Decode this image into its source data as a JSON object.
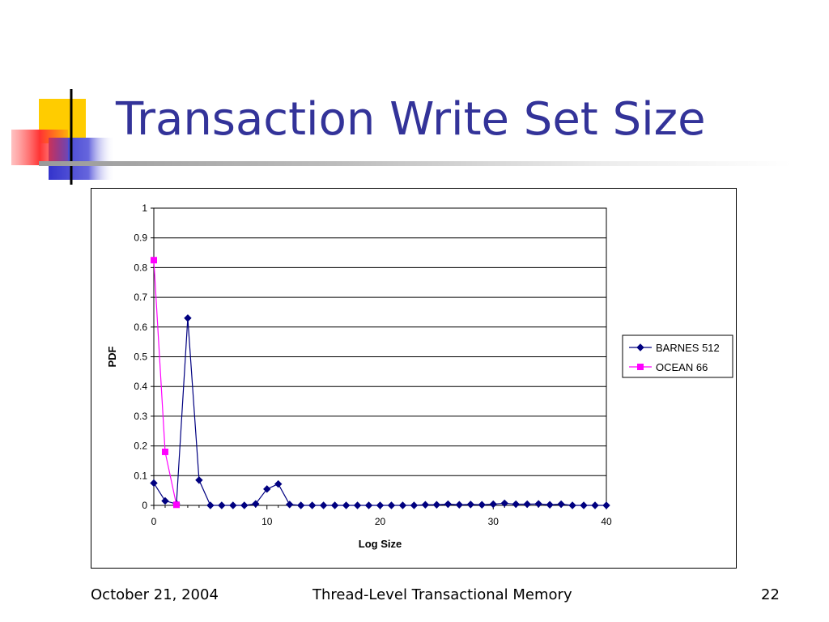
{
  "slide": {
    "title": "Transaction Write Set Size",
    "footer": {
      "date": "October 21, 2004",
      "center": "Thread-Level Transactional Memory",
      "page": "22"
    }
  },
  "colors": {
    "title": "#333399",
    "barnes": "#000080",
    "ocean": "#ff00ff",
    "logo_yellow": "#ffcc00",
    "logo_blue": "#3333cc",
    "logo_red": "#ff3333"
  },
  "chart_data": {
    "type": "line",
    "xlabel": "Log Size",
    "ylabel": "PDF",
    "xlim": [
      0,
      40
    ],
    "ylim": [
      0,
      1
    ],
    "xticks": [
      0,
      10,
      20,
      30,
      40
    ],
    "yticks": [
      0,
      0.1,
      0.2,
      0.3,
      0.4,
      0.5,
      0.6,
      0.7,
      0.8,
      0.9,
      1
    ],
    "ytick_labels": [
      "0",
      "0.1",
      "0.2",
      "0.3",
      "0.4",
      "0.5",
      "0.6",
      "0.7",
      "0.8",
      "0.9",
      "1"
    ],
    "grid": "horizontal",
    "legend_position": "right",
    "series": [
      {
        "name": "BARNES 512",
        "marker": "diamond",
        "color": "#000080",
        "x": [
          0,
          1,
          2,
          3,
          4,
          5,
          6,
          7,
          8,
          9,
          10,
          11,
          12,
          13,
          14,
          15,
          16,
          17,
          18,
          19,
          20,
          21,
          22,
          23,
          24,
          25,
          26,
          27,
          28,
          29,
          30,
          31,
          32,
          33,
          34,
          35,
          36,
          37,
          38,
          39,
          40
        ],
        "y": [
          0.075,
          0.015,
          0.005,
          0.63,
          0.085,
          0,
          0,
          0,
          0,
          0.005,
          0.055,
          0.072,
          0.003,
          0,
          0,
          0,
          0,
          0,
          0,
          0,
          0,
          0,
          0,
          0,
          0.002,
          0.002,
          0.004,
          0.002,
          0.003,
          0.002,
          0.004,
          0.007,
          0.004,
          0.004,
          0.005,
          0.002,
          0.004,
          0,
          0,
          0,
          0
        ]
      },
      {
        "name": "OCEAN 66",
        "marker": "square",
        "color": "#ff00ff",
        "x": [
          0,
          1,
          2
        ],
        "y": [
          0.825,
          0.18,
          0.002
        ]
      }
    ]
  }
}
